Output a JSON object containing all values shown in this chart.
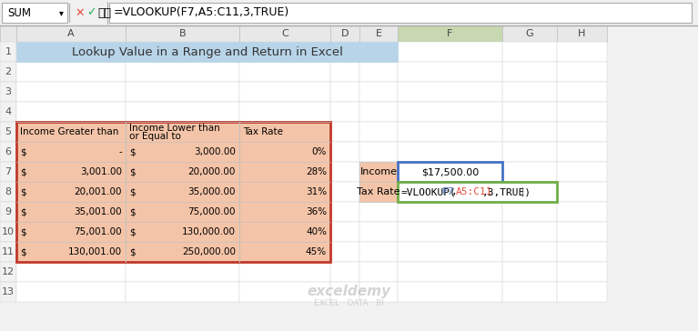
{
  "title": "Lookup Value in a Range and Return in Excel",
  "title_bg": "#b8d4e8",
  "formula_bar_text": "=VLOOKUP(F7,A5:C11,3,TRUE)",
  "name_box": "SUM",
  "col_headers": [
    "A",
    "B",
    "C",
    "D",
    "E",
    "F",
    "G",
    "H"
  ],
  "row_headers": [
    "1",
    "2",
    "3",
    "4",
    "5",
    "6",
    "7",
    "8",
    "9",
    "10",
    "11",
    "12",
    "13"
  ],
  "table_header_row5": [
    "Income Greater than",
    "Income Lower than\nor Equal to",
    "Tax Rate"
  ],
  "table_data": [
    [
      "$",
      "-",
      "$",
      "3,000.00",
      "0%"
    ],
    [
      "$",
      "3,001.00",
      "$",
      "20,000.00",
      "28%"
    ],
    [
      "$",
      "20,001.00",
      "$",
      "35,000.00",
      "31%"
    ],
    [
      "$",
      "35,001.00",
      "$",
      "75,000.00",
      "36%"
    ],
    [
      "$",
      "75,001.00",
      "$",
      "130,000.00",
      "40%"
    ],
    [
      "$",
      "130,001.00",
      "$",
      "250,000.00",
      "45%"
    ]
  ],
  "table_bg": "#f4c4a8",
  "table_border": "#c0392b",
  "cell_border": "#999999",
  "row8_bg": "#f4c4a8",
  "side_table": {
    "labels": [
      "Income",
      "Tax Rate"
    ],
    "values": [
      "$17,500.00",
      "=VLOOKUP(F7,A5:C11,3,TRUE)"
    ],
    "bg": "#f4c4a8",
    "income_border": "#4472c4",
    "taxrate_border": "#70ad47"
  },
  "formula_bar_bg": "#ffffff",
  "header_bg": "#d9d9d9",
  "grid_color": "#bfbfbf",
  "watermark": "exceldemy\nEXCEL · DATA · BI"
}
